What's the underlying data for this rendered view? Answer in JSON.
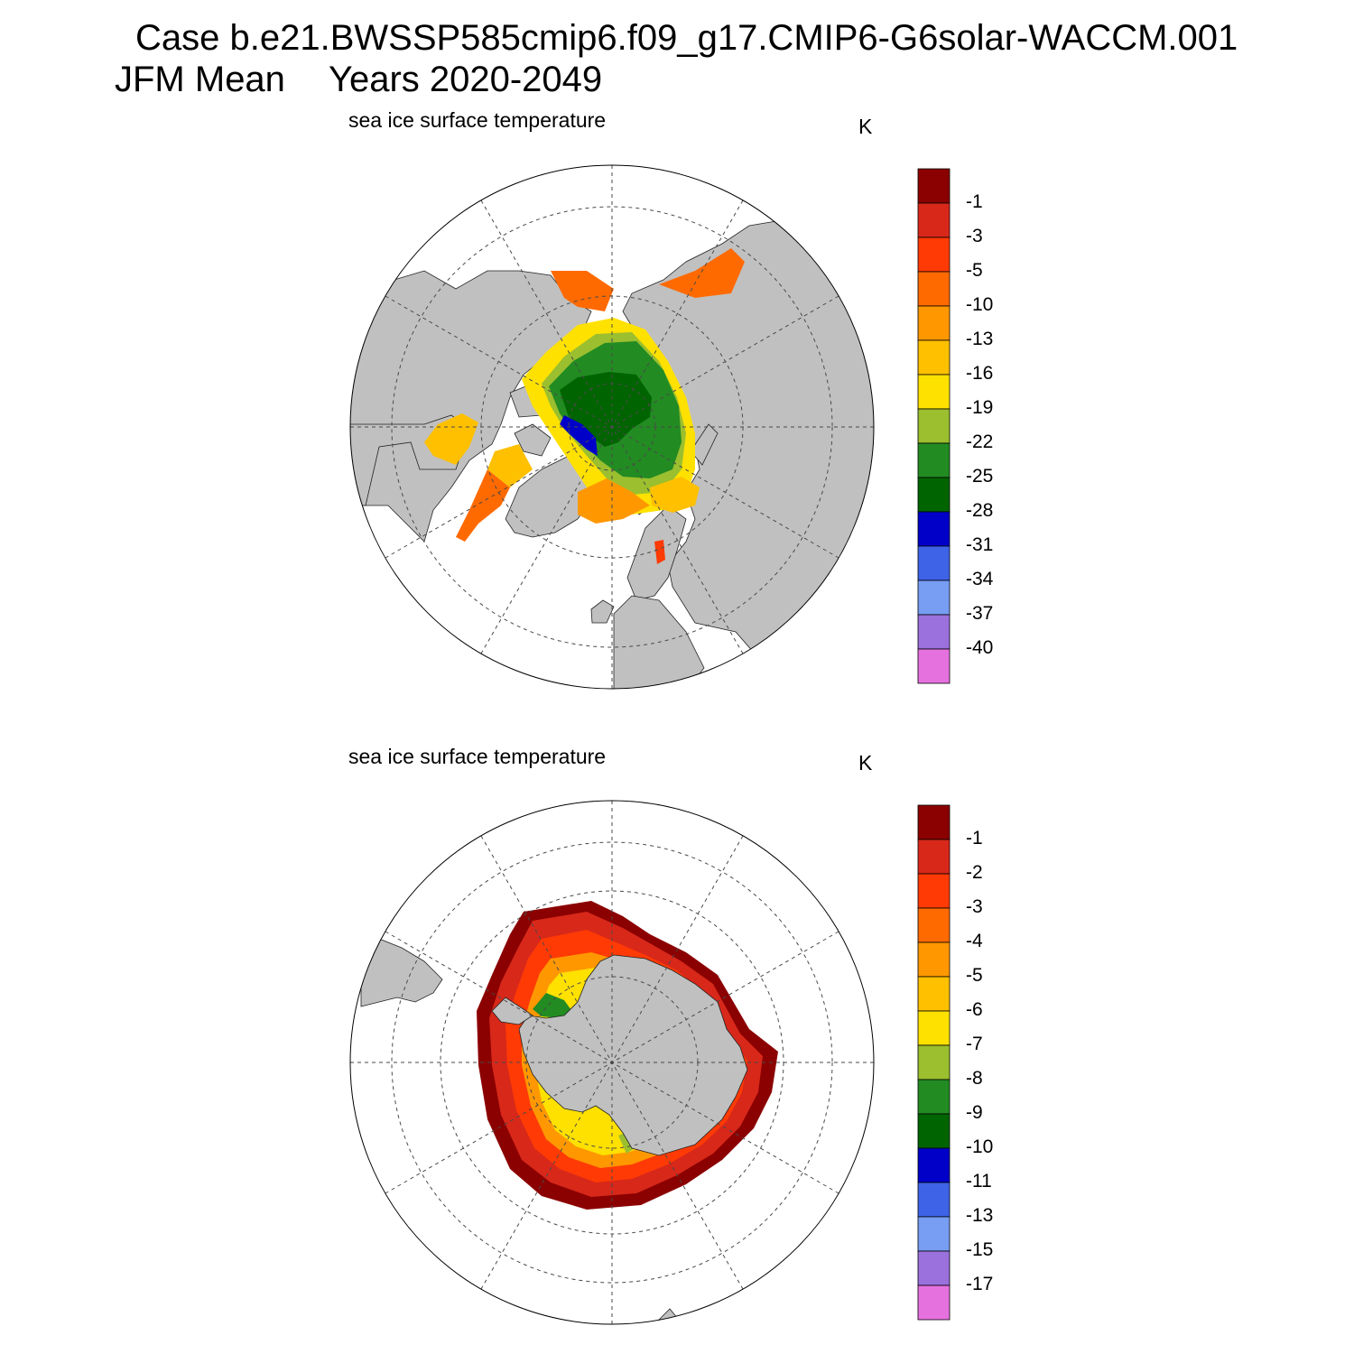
{
  "title": {
    "case_line": "Case b.e21.BWSSP585cmip6.f09_g17.CMIP6-G6solar-WACCM.001",
    "season": "JFM Mean",
    "years": "Years 2020-2049"
  },
  "panels": [
    {
      "id": "nh",
      "variable_label": "sea ice surface temperature",
      "unit": "K",
      "hemisphere": "Northern",
      "colorbar": {
        "labels": [
          "-1",
          "-3",
          "-5",
          "-10",
          "-13",
          "-16",
          "-19",
          "-22",
          "-25",
          "-28",
          "-31",
          "-34",
          "-37",
          "-40"
        ],
        "colors": [
          "#8b0000",
          "#d7281a",
          "#ff3a05",
          "#ff6a00",
          "#ff9800",
          "#ffc000",
          "#ffe100",
          "#9bbf2e",
          "#228b22",
          "#006400",
          "#0000c8",
          "#3e63e6",
          "#779ef2",
          "#9a71dd",
          "#e571df"
        ]
      }
    },
    {
      "id": "sh",
      "variable_label": "sea ice surface temperature",
      "unit": "K",
      "hemisphere": "Southern",
      "colorbar": {
        "labels": [
          "-1",
          "-2",
          "-3",
          "-4",
          "-5",
          "-6",
          "-7",
          "-8",
          "-9",
          "-10",
          "-11",
          "-13",
          "-15",
          "-17"
        ],
        "colors": [
          "#8b0000",
          "#d7281a",
          "#ff3a05",
          "#ff6a00",
          "#ff9800",
          "#ffc000",
          "#ffe100",
          "#9bbf2e",
          "#228b22",
          "#006400",
          "#0000c8",
          "#3e63e6",
          "#779ef2",
          "#9a71dd",
          "#e571df"
        ]
      }
    }
  ],
  "colors": {
    "land": "#c0c0c0",
    "ocean": "#ffffff",
    "grid": "#4a4a4a"
  }
}
